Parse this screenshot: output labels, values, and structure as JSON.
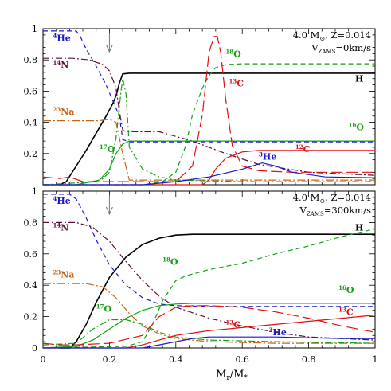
{
  "x_label": "M",
  "x_label_sub": "r",
  "x_label_mid": "/M",
  "x_label_sub2": "*",
  "x_ticks": [
    "0",
    "0.2",
    "0.4",
    "0.6",
    "0.8",
    "1"
  ],
  "y_ticks": [
    "0",
    "0.2",
    "0.4",
    "0.6",
    "0.8",
    "1"
  ],
  "colors": {
    "H": "#000000",
    "He4": "#1a1acc",
    "C12": "#e01010",
    "C13": "#e01010",
    "N14": "#5a1040",
    "O16": "#14a014",
    "O17": "#14a014",
    "O18": "#14a014",
    "Na23": "#c86414",
    "He3": "#1a1acc"
  },
  "chart_data": [
    {
      "type": "line",
      "panel": "top",
      "title_line1": "4.0 M",
      "title_sym": "⊙",
      "title_rest": ", Z=0.014",
      "title_line2_v": "V",
      "title_line2_sub": "ZAMS",
      "title_line2_rest": "=0km/s",
      "xlim": [
        0,
        1
      ],
      "ylim": [
        0,
        1
      ],
      "arrow_x": 0.2,
      "series": [
        {
          "name": "H",
          "style": "solid",
          "color": "#000000",
          "x": [
            0.05,
            0.07,
            0.1,
            0.13,
            0.16,
            0.19,
            0.21,
            0.22,
            0.23,
            0.24,
            0.26,
            0.35,
            0.5,
            0.7,
            0.9,
            1.0
          ],
          "y": [
            0.0,
            0.02,
            0.12,
            0.22,
            0.33,
            0.44,
            0.52,
            0.57,
            0.65,
            0.71,
            0.715,
            0.715,
            0.715,
            0.715,
            0.715,
            0.715
          ]
        },
        {
          "name": "4He",
          "style": "dashed",
          "color": "#1a1acc",
          "x": [
            0.0,
            0.1,
            0.11,
            0.13,
            0.16,
            0.19,
            0.21,
            0.23,
            0.24,
            0.26,
            0.4,
            0.6,
            0.8,
            1.0
          ],
          "y": [
            0.985,
            0.985,
            0.96,
            0.87,
            0.76,
            0.64,
            0.54,
            0.44,
            0.29,
            0.275,
            0.275,
            0.275,
            0.275,
            0.275
          ]
        },
        {
          "name": "14N",
          "style": "dashdot",
          "color": "#5a1040",
          "x": [
            0.0,
            0.09,
            0.14,
            0.18,
            0.2,
            0.22,
            0.23,
            0.24,
            0.25,
            0.26,
            0.35,
            0.45,
            0.55,
            0.65,
            0.8,
            1.0
          ],
          "y": [
            0.81,
            0.81,
            0.8,
            0.77,
            0.73,
            0.62,
            0.47,
            0.35,
            0.34,
            0.34,
            0.34,
            0.28,
            0.2,
            0.13,
            0.08,
            0.06
          ]
        },
        {
          "name": "23Na",
          "style": "dashdot2",
          "color": "#c86414",
          "x": [
            0.0,
            0.17,
            0.2,
            0.22,
            0.24,
            0.26,
            0.4,
            0.7,
            1.0
          ],
          "y": [
            0.41,
            0.41,
            0.42,
            0.4,
            0.2,
            0.03,
            0.03,
            0.03,
            0.03
          ]
        },
        {
          "name": "17O",
          "style": "dashdot",
          "color": "#14a014",
          "x": [
            0.0,
            0.17,
            0.2,
            0.22,
            0.235,
            0.24,
            0.25,
            0.26,
            0.3,
            0.35,
            0.4,
            0.6,
            1.0
          ],
          "y": [
            0.0,
            0.02,
            0.08,
            0.3,
            0.6,
            0.68,
            0.58,
            0.24,
            0.1,
            0.05,
            0.03,
            0.02,
            0.02
          ]
        },
        {
          "name": "16O",
          "style": "solid",
          "color": "#14a014",
          "x": [
            0.0,
            0.1,
            0.17,
            0.2,
            0.22,
            0.24,
            0.26,
            0.3,
            0.4,
            1.0
          ],
          "y": [
            0.0,
            0.0,
            0.03,
            0.1,
            0.2,
            0.26,
            0.28,
            0.28,
            0.28,
            0.28
          ]
        },
        {
          "name": "18O",
          "style": "dashed",
          "color": "#14a014",
          "x": [
            0.0,
            0.3,
            0.36,
            0.4,
            0.43,
            0.45,
            0.48,
            0.5,
            0.52,
            0.55,
            0.6,
            0.7,
            1.0
          ],
          "y": [
            0.0,
            0.0,
            0.02,
            0.08,
            0.25,
            0.45,
            0.62,
            0.7,
            0.75,
            0.77,
            0.775,
            0.775,
            0.775
          ]
        },
        {
          "name": "13C",
          "style": "longdash",
          "color": "#e01010",
          "x": [
            0.0,
            0.05,
            0.08,
            0.12,
            0.4,
            0.45,
            0.48,
            0.5,
            0.515,
            0.525,
            0.535,
            0.55,
            0.57,
            0.6,
            0.65,
            0.75,
            1.0
          ],
          "y": [
            0.05,
            0.04,
            0.05,
            0.02,
            0.02,
            0.12,
            0.45,
            0.85,
            0.95,
            0.95,
            0.85,
            0.55,
            0.25,
            0.12,
            0.09,
            0.08,
            0.08
          ]
        },
        {
          "name": "12C",
          "style": "solid",
          "color": "#e01010",
          "x": [
            0.0,
            0.48,
            0.5,
            0.52,
            0.55,
            0.6,
            0.65,
            0.7,
            1.0
          ],
          "y": [
            0.0,
            0.0,
            0.03,
            0.1,
            0.17,
            0.21,
            0.22,
            0.22,
            0.22
          ]
        },
        {
          "name": "3He",
          "style": "solid",
          "color": "#1a1acc",
          "x": [
            0.0,
            0.3,
            0.4,
            0.5,
            0.6,
            0.66,
            0.7,
            0.75,
            0.85,
            1.0
          ],
          "y": [
            0.0,
            0.0,
            0.02,
            0.05,
            0.1,
            0.14,
            0.12,
            0.08,
            0.05,
            0.045
          ]
        }
      ],
      "labels": [
        {
          "sup": "4",
          "text": "He",
          "color": "#1a1acc",
          "x": 0.03,
          "y": 0.92
        },
        {
          "sup": "14",
          "text": "N",
          "color": "#5a1040",
          "x": 0.03,
          "y": 0.75
        },
        {
          "sup": "23",
          "text": "Na",
          "color": "#c86414",
          "x": 0.03,
          "y": 0.45
        },
        {
          "sup": "17",
          "text": "O",
          "color": "#14a014",
          "x": 0.17,
          "y": 0.21
        },
        {
          "sup": "18",
          "text": "O",
          "color": "#14a014",
          "x": 0.55,
          "y": 0.82
        },
        {
          "sup": "13",
          "text": "C",
          "color": "#e01010",
          "x": 0.56,
          "y": 0.63
        },
        {
          "sup": "",
          "text": "H",
          "color": "#000000",
          "x": 0.94,
          "y": 0.66
        },
        {
          "sup": "16",
          "text": "O",
          "color": "#14a014",
          "x": 0.92,
          "y": 0.35
        },
        {
          "sup": "12",
          "text": "C",
          "color": "#e01010",
          "x": 0.76,
          "y": 0.21
        },
        {
          "sup": "3",
          "text": "He",
          "color": "#1a1acc",
          "x": 0.65,
          "y": 0.16
        }
      ]
    },
    {
      "type": "line",
      "panel": "bottom",
      "title_line1": "4.0 M",
      "title_sym": "⊙",
      "title_rest": ", Z=0.014",
      "title_line2_v": "V",
      "title_line2_sub": "ZAMS",
      "title_line2_rest": "=300km/s",
      "xlim": [
        0,
        1
      ],
      "ylim": [
        0,
        1
      ],
      "arrow_x": 0.2,
      "series": [
        {
          "name": "H",
          "style": "solid",
          "color": "#000000",
          "x": [
            0.05,
            0.08,
            0.1,
            0.13,
            0.16,
            0.2,
            0.25,
            0.3,
            0.35,
            0.4,
            0.45,
            0.5,
            0.6,
            0.8,
            1.0
          ],
          "y": [
            0.0,
            0.0,
            0.04,
            0.15,
            0.29,
            0.45,
            0.58,
            0.66,
            0.7,
            0.72,
            0.725,
            0.725,
            0.725,
            0.725,
            0.725
          ]
        },
        {
          "name": "4He",
          "style": "dashed",
          "color": "#1a1acc",
          "x": [
            0.0,
            0.08,
            0.1,
            0.13,
            0.16,
            0.2,
            0.25,
            0.3,
            0.35,
            0.4,
            0.5,
            0.7,
            1.0
          ],
          "y": [
            0.98,
            0.98,
            0.95,
            0.83,
            0.69,
            0.53,
            0.4,
            0.32,
            0.28,
            0.27,
            0.265,
            0.265,
            0.265
          ]
        },
        {
          "name": "14N",
          "style": "dashdot",
          "color": "#5a1040",
          "x": [
            0.0,
            0.1,
            0.15,
            0.2,
            0.25,
            0.3,
            0.35,
            0.4,
            0.5,
            0.6,
            0.7,
            0.8,
            1.0
          ],
          "y": [
            0.8,
            0.8,
            0.77,
            0.68,
            0.55,
            0.43,
            0.33,
            0.26,
            0.19,
            0.14,
            0.1,
            0.07,
            0.05
          ]
        },
        {
          "name": "23Na",
          "style": "dashdot2",
          "color": "#c86414",
          "x": [
            0.0,
            0.13,
            0.18,
            0.22,
            0.26,
            0.3,
            0.35,
            0.4,
            0.5,
            0.7,
            1.0
          ],
          "y": [
            0.41,
            0.41,
            0.39,
            0.32,
            0.22,
            0.14,
            0.09,
            0.06,
            0.04,
            0.03,
            0.03
          ]
        },
        {
          "name": "17O",
          "style": "dashdot",
          "color": "#14a014",
          "x": [
            0.0,
            0.1,
            0.15,
            0.2,
            0.25,
            0.3,
            0.35,
            0.4,
            0.5,
            0.7,
            1.0
          ],
          "y": [
            0.02,
            0.03,
            0.12,
            0.18,
            0.18,
            0.15,
            0.1,
            0.07,
            0.05,
            0.04,
            0.03
          ]
        },
        {
          "name": "16O",
          "style": "solid",
          "color": "#14a014",
          "x": [
            0.0,
            0.1,
            0.15,
            0.2,
            0.25,
            0.3,
            0.35,
            0.4,
            0.45,
            0.5,
            1.0
          ],
          "y": [
            0.0,
            0.01,
            0.05,
            0.12,
            0.19,
            0.24,
            0.27,
            0.28,
            0.285,
            0.285,
            0.285
          ]
        },
        {
          "name": "18O",
          "style": "dashed",
          "color": "#14a014",
          "x": [
            0.0,
            0.25,
            0.3,
            0.33,
            0.36,
            0.4,
            0.43,
            0.5,
            0.6,
            0.7,
            0.8,
            0.9,
            1.0
          ],
          "y": [
            0.0,
            0.01,
            0.04,
            0.15,
            0.3,
            0.43,
            0.46,
            0.5,
            0.54,
            0.6,
            0.65,
            0.71,
            0.76
          ]
        },
        {
          "name": "13C",
          "style": "longdash",
          "color": "#e01010",
          "x": [
            0.0,
            0.05,
            0.1,
            0.2,
            0.3,
            0.35,
            0.4,
            0.45,
            0.5,
            0.6,
            0.7,
            0.8,
            0.9,
            1.0
          ],
          "y": [
            0.03,
            0.02,
            0.02,
            0.03,
            0.08,
            0.2,
            0.26,
            0.27,
            0.27,
            0.26,
            0.23,
            0.19,
            0.14,
            0.1
          ]
        },
        {
          "name": "12C",
          "style": "solid",
          "color": "#e01010",
          "x": [
            0.0,
            0.25,
            0.3,
            0.35,
            0.4,
            0.5,
            0.6,
            0.7,
            0.8,
            0.9,
            1.0
          ],
          "y": [
            0.0,
            0.0,
            0.02,
            0.05,
            0.08,
            0.11,
            0.13,
            0.15,
            0.17,
            0.19,
            0.21
          ]
        },
        {
          "name": "3He",
          "style": "solid",
          "color": "#1a1acc",
          "x": [
            0.0,
            0.3,
            0.35,
            0.4,
            0.45,
            0.5,
            0.6,
            0.7,
            0.8,
            0.9,
            1.0
          ],
          "y": [
            0.0,
            0.0,
            0.02,
            0.04,
            0.06,
            0.07,
            0.07,
            0.07,
            0.065,
            0.06,
            0.06
          ]
        }
      ],
      "labels": [
        {
          "sup": "4",
          "text": "He",
          "color": "#1a1acc",
          "x": 0.03,
          "y": 0.92
        },
        {
          "sup": "14",
          "text": "N",
          "color": "#5a1040",
          "x": 0.03,
          "y": 0.75
        },
        {
          "sup": "23",
          "text": "Na",
          "color": "#c86414",
          "x": 0.03,
          "y": 0.45
        },
        {
          "sup": "17",
          "text": "O",
          "color": "#14a014",
          "x": 0.16,
          "y": 0.23
        },
        {
          "sup": "18",
          "text": "O",
          "color": "#14a014",
          "x": 0.36,
          "y": 0.53
        },
        {
          "sup": "13",
          "text": "C",
          "color": "#e01010",
          "x": 0.89,
          "y": 0.21
        },
        {
          "sup": "",
          "text": "H",
          "color": "#000000",
          "x": 0.94,
          "y": 0.75
        },
        {
          "sup": "16",
          "text": "O",
          "color": "#14a014",
          "x": 0.89,
          "y": 0.35
        },
        {
          "sup": "12",
          "text": "C",
          "color": "#e01010",
          "x": 0.55,
          "y": 0.13
        },
        {
          "sup": "3",
          "text": "He",
          "color": "#1a1acc",
          "x": 0.68,
          "y": 0.08
        }
      ]
    }
  ]
}
